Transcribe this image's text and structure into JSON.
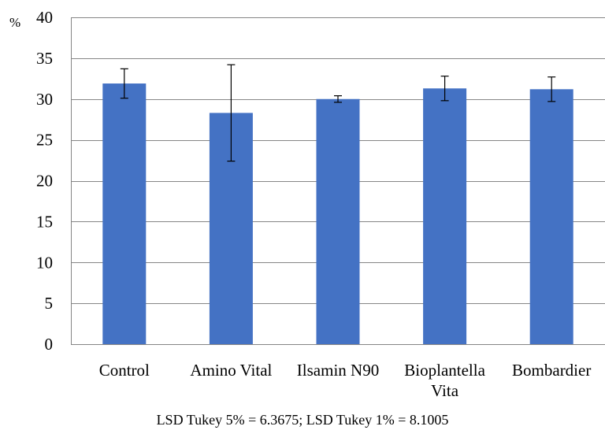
{
  "chart_data": {
    "type": "bar",
    "title": "",
    "xlabel": "",
    "ylabel": "%",
    "categories": [
      "Control",
      "Amino Vital",
      "Ilsamin N90",
      "Bioplantella Vita",
      "Bombardier"
    ],
    "category_lines": [
      [
        "Control"
      ],
      [
        "Amino Vital"
      ],
      [
        "Ilsamin N90"
      ],
      [
        "Bioplantella",
        "Vita"
      ],
      [
        "Bombardier"
      ]
    ],
    "values": [
      31.9,
      28.3,
      30.0,
      31.3,
      31.2
    ],
    "error": [
      1.8,
      5.9,
      0.4,
      1.5,
      1.5
    ],
    "ylim": [
      0,
      40
    ],
    "yticks": [
      0,
      5,
      10,
      15,
      20,
      25,
      30,
      35,
      40
    ],
    "grid": true,
    "legend": "none",
    "bar_color": "#4472C4",
    "grid_color": "#868686",
    "annotation": "LSD Tukey 5% = 6.3675; LSD Tukey 1% = 8.1005"
  }
}
